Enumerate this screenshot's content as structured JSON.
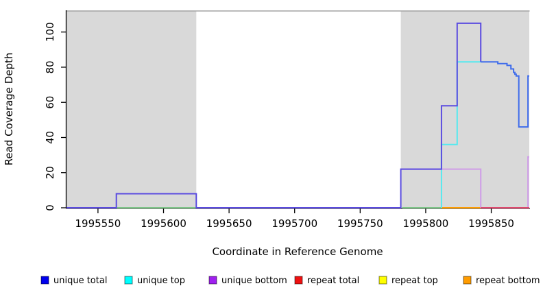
{
  "chart_data": {
    "type": "line",
    "title": "",
    "xlabel": "Coordinate in Reference Genome",
    "ylabel": "Read Coverage Depth",
    "xlim": [
      1995526,
      1995879
    ],
    "ylim": [
      0,
      112
    ],
    "x_ticks": [
      1995550,
      1995600,
      1995650,
      1995700,
      1995750,
      1995800,
      1995850
    ],
    "y_ticks": [
      0,
      20,
      40,
      60,
      80,
      100
    ],
    "grid": false,
    "plot_bg": "#ffffff",
    "shade_color": "#d9d9d9",
    "shaded_regions": [
      {
        "name": "left-shaded-region",
        "x0": 1995526,
        "x1": 1995625
      },
      {
        "name": "right-shaded-region",
        "x0": 1995781,
        "x1": 1995879
      }
    ],
    "series": [
      {
        "name": "top-strand-overlap",
        "color": "#7cc487",
        "width": 2,
        "segments": [
          [
            [
              1995564,
              0
            ],
            [
              1995625,
              0
            ]
          ],
          [
            [
              1995782,
              0
            ],
            [
              1995812,
              0
            ]
          ]
        ]
      },
      {
        "name": "repeat bottom",
        "color": "#ff9d00",
        "width": 2,
        "segments": [
          [
            [
              1995812,
              0
            ],
            [
              1995842,
              0
            ]
          ]
        ]
      },
      {
        "name": "unique bottom",
        "color": "#cf9ce8",
        "width": 2,
        "segments": [
          [
            [
              1995781,
              22
            ],
            [
              1995842,
              22
            ],
            [
              1995842,
              0
            ]
          ],
          [
            [
              1995878,
              0
            ],
            [
              1995878,
              29
            ],
            [
              1995879,
              29
            ]
          ]
        ]
      },
      {
        "name": "repeat total",
        "color": "#e0486e",
        "width": 2,
        "segments": [
          [
            [
              1995842,
              0
            ],
            [
              1995879,
              0
            ]
          ]
        ]
      },
      {
        "name": "unique top",
        "color": "#55e9ef",
        "width": 2,
        "segments": [
          [
            [
              1995812,
              0
            ],
            [
              1995812,
              36
            ],
            [
              1995824,
              36
            ],
            [
              1995824,
              83
            ],
            [
              1995842,
              83
            ]
          ]
        ]
      },
      {
        "name": "unique total",
        "color": "#5a4be0",
        "width": 2,
        "segments": [
          [
            [
              1995526,
              0
            ],
            [
              1995564,
              0
            ],
            [
              1995564,
              8
            ],
            [
              1995625,
              8
            ],
            [
              1995625,
              0
            ],
            [
              1995781,
              0
            ],
            [
              1995781,
              22
            ],
            [
              1995812,
              22
            ],
            [
              1995812,
              58
            ],
            [
              1995824,
              58
            ],
            [
              1995824,
              105
            ],
            [
              1995842,
              105
            ],
            [
              1995842,
              83
            ]
          ]
        ]
      },
      {
        "name": "unique total (right tail)",
        "color": "#3f6ceb",
        "width": 2,
        "segments": [
          [
            [
              1995842,
              83
            ],
            [
              1995855,
              83
            ],
            [
              1995855,
              82
            ],
            [
              1995862,
              82
            ],
            [
              1995862,
              81
            ],
            [
              1995865,
              81
            ],
            [
              1995865,
              79
            ],
            [
              1995867,
              79
            ],
            [
              1995867,
              77
            ],
            [
              1995868,
              77
            ],
            [
              1995868,
              76
            ],
            [
              1995869,
              76
            ],
            [
              1995869,
              75
            ],
            [
              1995871,
              75
            ],
            [
              1995871,
              46
            ],
            [
              1995878,
              46
            ],
            [
              1995878,
              75
            ],
            [
              1995879,
              75
            ]
          ]
        ]
      }
    ],
    "legend": [
      {
        "label": "unique total",
        "color": "#0000ee"
      },
      {
        "label": "unique top",
        "color": "#00ffff"
      },
      {
        "label": "unique bottom",
        "color": "#a020f0"
      },
      {
        "label": "repeat total",
        "color": "#ee1111"
      },
      {
        "label": "repeat top",
        "color": "#ffff00"
      },
      {
        "label": "repeat bottom",
        "color": "#ff9c00"
      }
    ],
    "legend_position": "bottom"
  }
}
